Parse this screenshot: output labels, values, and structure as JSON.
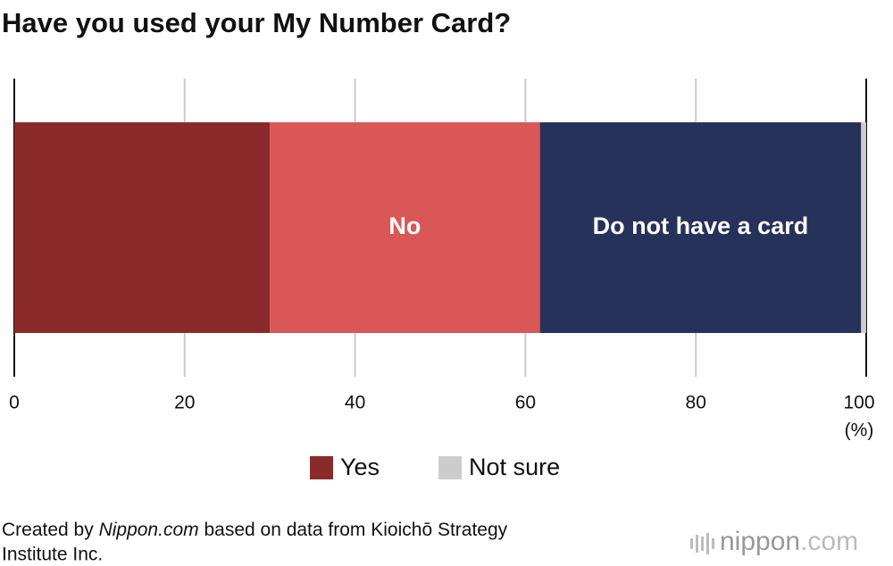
{
  "chart_data": {
    "type": "stacked-bar",
    "orientation": "horizontal",
    "title": "Have you used your My Number Card?",
    "series": [
      {
        "name": "Yes",
        "color": "#8a2a2a",
        "values": [
          30.0
        ],
        "label_position": "legend"
      },
      {
        "name": "No",
        "color": "#da5757",
        "values": [
          31.7
        ],
        "label_position": "inside"
      },
      {
        "name": "Do not have a card",
        "color": "#26325a",
        "values": [
          37.7
        ],
        "label_position": "inside"
      },
      {
        "name": "Not sure",
        "color": "#cccccc",
        "values": [
          0.6
        ],
        "label_position": "legend"
      }
    ],
    "xlim": [
      0,
      100
    ],
    "xticks": [
      0,
      20,
      40,
      60,
      80,
      100
    ],
    "xlabel": "(%)",
    "grid": true,
    "source": [
      "Created by ",
      "Nippon.com",
      " based on data from Kioichō Strategy",
      "Institute Inc."
    ],
    "logo": [
      "nippon",
      ".com"
    ]
  }
}
